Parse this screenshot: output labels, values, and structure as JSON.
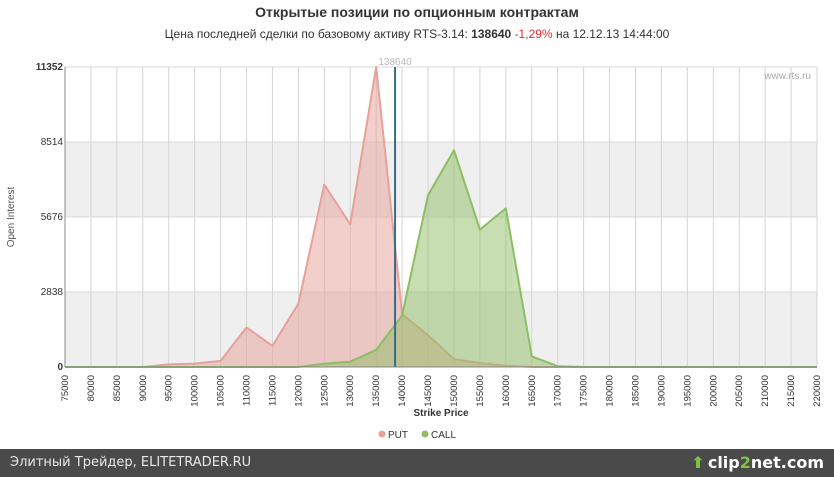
{
  "title": "Открытые позиции по опционным контрактам",
  "subtitle": {
    "prefix": "Цена последней сделки по базовому активу RTS-3.14:",
    "price": "138640",
    "change": "-1,29%",
    "suffix": "на 12.12.13 14:44:00"
  },
  "watermark": "www.rts.ru",
  "footer": {
    "text": "Элитный Трейдер, ELITETRADER.RU",
    "logo_left": "clip",
    "logo_mid": "2",
    "logo_right": "net.com",
    "logo_icon": "arrow-up-icon"
  },
  "chart_data": {
    "type": "area",
    "xlabel": "Strike Price",
    "ylabel": "Open Interest",
    "x": [
      75000,
      80000,
      85000,
      90000,
      95000,
      100000,
      105000,
      110000,
      115000,
      120000,
      125000,
      130000,
      135000,
      140000,
      145000,
      150000,
      155000,
      160000,
      165000,
      170000,
      175000,
      180000,
      185000,
      190000,
      195000,
      200000,
      205000,
      210000,
      215000,
      220000
    ],
    "xlim": [
      75000,
      220000
    ],
    "ylim": [
      0,
      11352
    ],
    "y_ticks": [
      0,
      2838,
      5676,
      8514,
      11352
    ],
    "grid": true,
    "legend_position": "bottom-center",
    "marker": {
      "x": 138640,
      "label": "138640"
    },
    "series": [
      {
        "name": "PUT",
        "color": "#e8a09a",
        "values": [
          0,
          0,
          0,
          0,
          100,
          130,
          230,
          1500,
          800,
          2400,
          6900,
          5400,
          11352,
          2000,
          1200,
          300,
          150,
          50,
          0,
          0,
          0,
          0,
          0,
          0,
          0,
          0,
          0,
          0,
          0,
          0
        ]
      },
      {
        "name": "CALL",
        "color": "#8dbe63",
        "values": [
          0,
          0,
          0,
          0,
          0,
          0,
          0,
          0,
          0,
          0,
          130,
          200,
          650,
          1950,
          6500,
          8200,
          5200,
          6000,
          400,
          30,
          0,
          0,
          0,
          0,
          0,
          0,
          0,
          0,
          0,
          0
        ]
      }
    ]
  }
}
